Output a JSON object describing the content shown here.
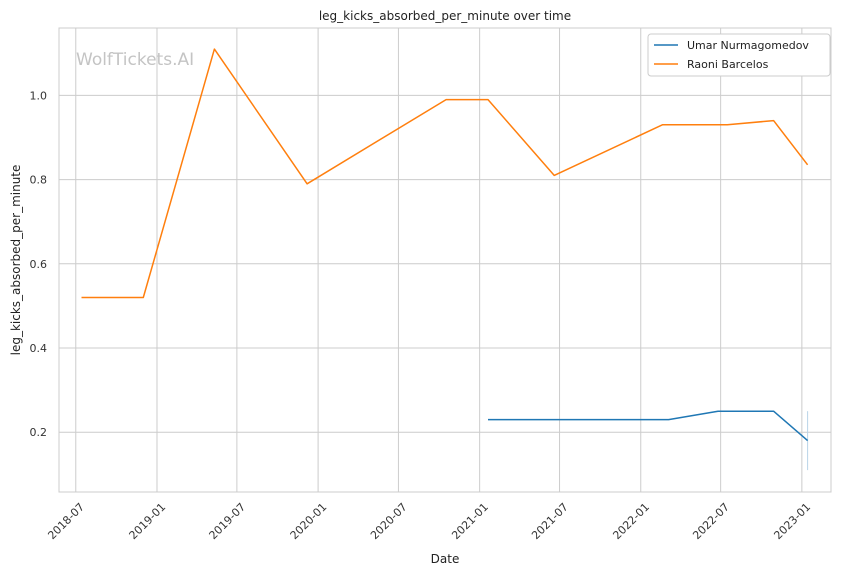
{
  "chart_data": {
    "type": "line",
    "title": "leg_kicks_absorbed_per_minute over time",
    "xlabel": "Date",
    "ylabel": "leg_kicks_absorbed_per_minute",
    "watermark": "WolfTickets.AI",
    "xlim": [
      "2018-05-24",
      "2023-03-08"
    ],
    "ylim": [
      0.058,
      1.16
    ],
    "x_ticks": [
      "2018-07",
      "2019-01",
      "2019-07",
      "2020-01",
      "2020-07",
      "2021-01",
      "2021-07",
      "2022-01",
      "2022-07",
      "2023-01"
    ],
    "y_ticks": [
      "0.2",
      "0.4",
      "0.6",
      "0.8",
      "1.0"
    ],
    "grid": true,
    "legend_position": "top-right",
    "series": [
      {
        "name": "Umar Nurmagomedov",
        "color": "#1f77b4",
        "x": [
          "2021-01-20",
          "2022-03-05",
          "2022-06-25",
          "2022-10-29",
          "2023-01-14"
        ],
        "y": [
          0.23,
          0.23,
          0.25,
          0.25,
          0.18
        ]
      },
      {
        "name": "Raoni Barcelos",
        "color": "#ff7f0e",
        "x": [
          "2018-07-14",
          "2018-12-01",
          "2019-05-11",
          "2019-12-07",
          "2020-10-17",
          "2021-01-20",
          "2021-06-19",
          "2022-02-19",
          "2022-07-16",
          "2022-10-29",
          "2023-01-14"
        ],
        "y": [
          0.52,
          0.52,
          1.11,
          0.79,
          0.99,
          0.99,
          0.81,
          0.93,
          0.93,
          0.94,
          0.835
        ]
      }
    ],
    "error_bar": {
      "x": "2023-01-14",
      "y_range": [
        0.11,
        0.25
      ]
    }
  }
}
